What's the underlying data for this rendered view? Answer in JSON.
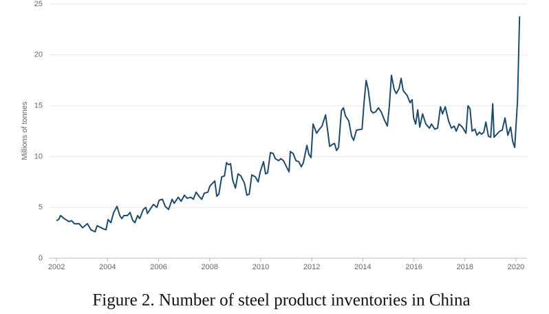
{
  "chart_data": {
    "type": "line",
    "caption": "Figure 2. Number of steel product inventories in China",
    "y_label": "Millions of tonnes",
    "x": [
      2002.0,
      2002.08,
      2002.16,
      2002.3,
      2002.49,
      2002.59,
      2002.7,
      2002.89,
      2003.02,
      2003.21,
      2003.35,
      2003.51,
      2003.59,
      2003.83,
      2003.94,
      2004.02,
      2004.13,
      2004.24,
      2004.37,
      2004.48,
      2004.56,
      2004.64,
      2004.78,
      2004.88,
      2004.99,
      2005.07,
      2005.18,
      2005.26,
      2005.4,
      2005.5,
      2005.56,
      2005.69,
      2005.8,
      2005.93,
      2006.02,
      2006.15,
      2006.26,
      2006.39,
      2006.53,
      2006.61,
      2006.77,
      2006.88,
      2007.01,
      2007.12,
      2007.26,
      2007.36,
      2007.47,
      2007.58,
      2007.69,
      2007.79,
      2007.93,
      2008.01,
      2008.2,
      2008.28,
      2008.36,
      2008.47,
      2008.58,
      2008.66,
      2008.74,
      2008.82,
      2008.9,
      2009.01,
      2009.11,
      2009.22,
      2009.36,
      2009.46,
      2009.55,
      2009.65,
      2009.79,
      2009.9,
      2009.98,
      2010.11,
      2010.19,
      2010.27,
      2010.38,
      2010.49,
      2010.57,
      2010.7,
      2010.79,
      2010.89,
      2011.03,
      2011.11,
      2011.16,
      2011.27,
      2011.38,
      2011.49,
      2011.59,
      2011.67,
      2011.81,
      2011.89,
      2011.97,
      2012.05,
      2012.19,
      2012.27,
      2012.4,
      2012.54,
      2012.62,
      2012.7,
      2012.81,
      2012.89,
      2012.97,
      2013.05,
      2013.16,
      2013.24,
      2013.32,
      2013.45,
      2013.56,
      2013.64,
      2013.75,
      2013.97,
      2014.05,
      2014.13,
      2014.21,
      2014.32,
      2014.4,
      2014.5,
      2014.61,
      2014.72,
      2014.83,
      2014.96,
      2015.04,
      2015.12,
      2015.23,
      2015.31,
      2015.42,
      2015.5,
      2015.58,
      2015.74,
      2015.85,
      2015.93,
      2015.99,
      2016.07,
      2016.15,
      2016.23,
      2016.34,
      2016.47,
      2016.61,
      2016.69,
      2016.82,
      2016.93,
      2017.04,
      2017.12,
      2017.23,
      2017.36,
      2017.47,
      2017.58,
      2017.66,
      2017.77,
      2017.9,
      2018.04,
      2018.12,
      2018.2,
      2018.28,
      2018.39,
      2018.47,
      2018.57,
      2018.65,
      2018.74,
      2018.82,
      2018.92,
      2019.01,
      2019.09,
      2019.14,
      2019.25,
      2019.36,
      2019.46,
      2019.57,
      2019.68,
      2019.79,
      2019.87,
      2019.95,
      2020.06,
      2020.14
    ],
    "series": [
      {
        "color": "#1d4a6b",
        "values": [
          3.7,
          3.8,
          4.2,
          3.9,
          3.6,
          3.7,
          3.4,
          3.4,
          3.0,
          3.4,
          2.8,
          2.6,
          3.2,
          2.9,
          2.8,
          3.8,
          3.5,
          4.5,
          5.1,
          4.2,
          3.9,
          4.2,
          4.2,
          4.5,
          3.7,
          3.5,
          4.2,
          3.9,
          4.8,
          5.0,
          4.4,
          4.9,
          5.3,
          5.0,
          5.7,
          5.8,
          5.1,
          4.8,
          5.8,
          5.4,
          6.0,
          5.6,
          6.2,
          5.9,
          6.0,
          5.8,
          6.5,
          6.1,
          5.8,
          6.4,
          6.5,
          7.1,
          7.6,
          6.1,
          6.3,
          8.0,
          8.1,
          9.4,
          9.2,
          9.3,
          7.7,
          6.9,
          8.3,
          8.1,
          7.4,
          6.2,
          6.3,
          8.2,
          8.0,
          7.5,
          8.5,
          9.5,
          8.3,
          8.4,
          10.4,
          10.3,
          9.8,
          9.6,
          9.8,
          9.6,
          8.9,
          8.5,
          10.5,
          10.3,
          9.6,
          9.5,
          9.0,
          9.4,
          11.1,
          10.2,
          9.9,
          13.2,
          12.3,
          12.6,
          13.0,
          14.1,
          12.6,
          11.0,
          11.2,
          11.3,
          10.6,
          10.9,
          14.5,
          14.8,
          14.0,
          13.5,
          12.0,
          11.6,
          12.6,
          12.7,
          15.4,
          17.5,
          16.6,
          14.5,
          14.3,
          14.4,
          14.8,
          14.4,
          13.7,
          13.0,
          15.0,
          18.0,
          16.6,
          16.2,
          16.7,
          17.7,
          16.5,
          16.0,
          15.3,
          15.6,
          13.8,
          13.2,
          14.6,
          12.9,
          14.2,
          13.2,
          12.8,
          13.2,
          12.7,
          12.8,
          14.9,
          14.2,
          14.9,
          13.5,
          12.8,
          13.0,
          12.5,
          13.2,
          12.9,
          12.3,
          15.0,
          14.7,
          12.5,
          12.7,
          12.1,
          12.4,
          12.2,
          12.4,
          13.4,
          12.0,
          11.9,
          15.2,
          11.9,
          12.2,
          12.5,
          12.6,
          13.8,
          12.1,
          12.9,
          11.5,
          10.9,
          15.5,
          23.8
        ]
      }
    ],
    "xlim": [
      2001.7,
      2020.7
    ],
    "xticks": [
      2002,
      2004,
      2006,
      2008,
      2010,
      2012,
      2014,
      2016,
      2018,
      2020
    ],
    "ylim": [
      0,
      25
    ],
    "yticks": [
      0,
      5,
      10,
      15,
      20,
      25
    ],
    "grid": true
  }
}
